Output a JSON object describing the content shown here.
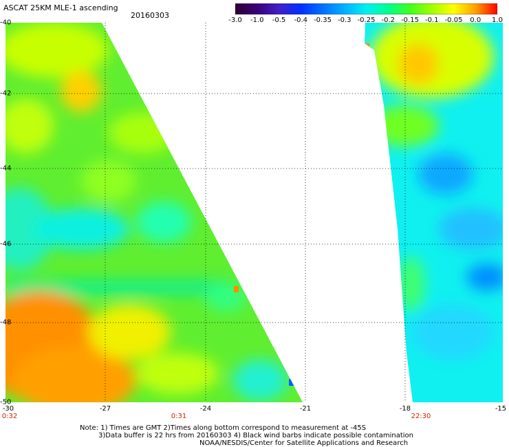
{
  "header": {
    "title": "ASCAT 25KM MLE-1 ascending",
    "date": "20160303"
  },
  "colorbar": {
    "labels": [
      "-3.0",
      "-1.0",
      "-0.5",
      "-0.4",
      "-0.35",
      "-0.3",
      "-0.25",
      "-0.2",
      "-0.15",
      "-0.1",
      "-0.05",
      "0.0",
      "1.0"
    ],
    "colors": [
      "#300030",
      "#3a0078",
      "#4020c8",
      "#0030ff",
      "#0070ff",
      "#00b0ff",
      "#00f0f0",
      "#00ff90",
      "#40ff20",
      "#a0ff00",
      "#ffff00",
      "#ffa000",
      "#ff0000"
    ]
  },
  "axes": {
    "lat_labels": [
      "-40",
      "-42",
      "-44",
      "-46",
      "-48",
      "-50"
    ],
    "lon_labels": [
      "-30",
      "-27",
      "-24",
      "-21",
      "-18",
      "-15"
    ]
  },
  "times": [
    "0:32",
    "0:31",
    "22:30"
  ],
  "notes": [
    "Note: 1) Times are GMT 2)Times along bottom correspond to measurement at -45S",
    "3)Data buffer is 22 hrs from 20160303 4) Black wind barbs indicate possible contamination",
    "NOAA/NESDIS/Center for Satellite Applications and Research"
  ]
}
